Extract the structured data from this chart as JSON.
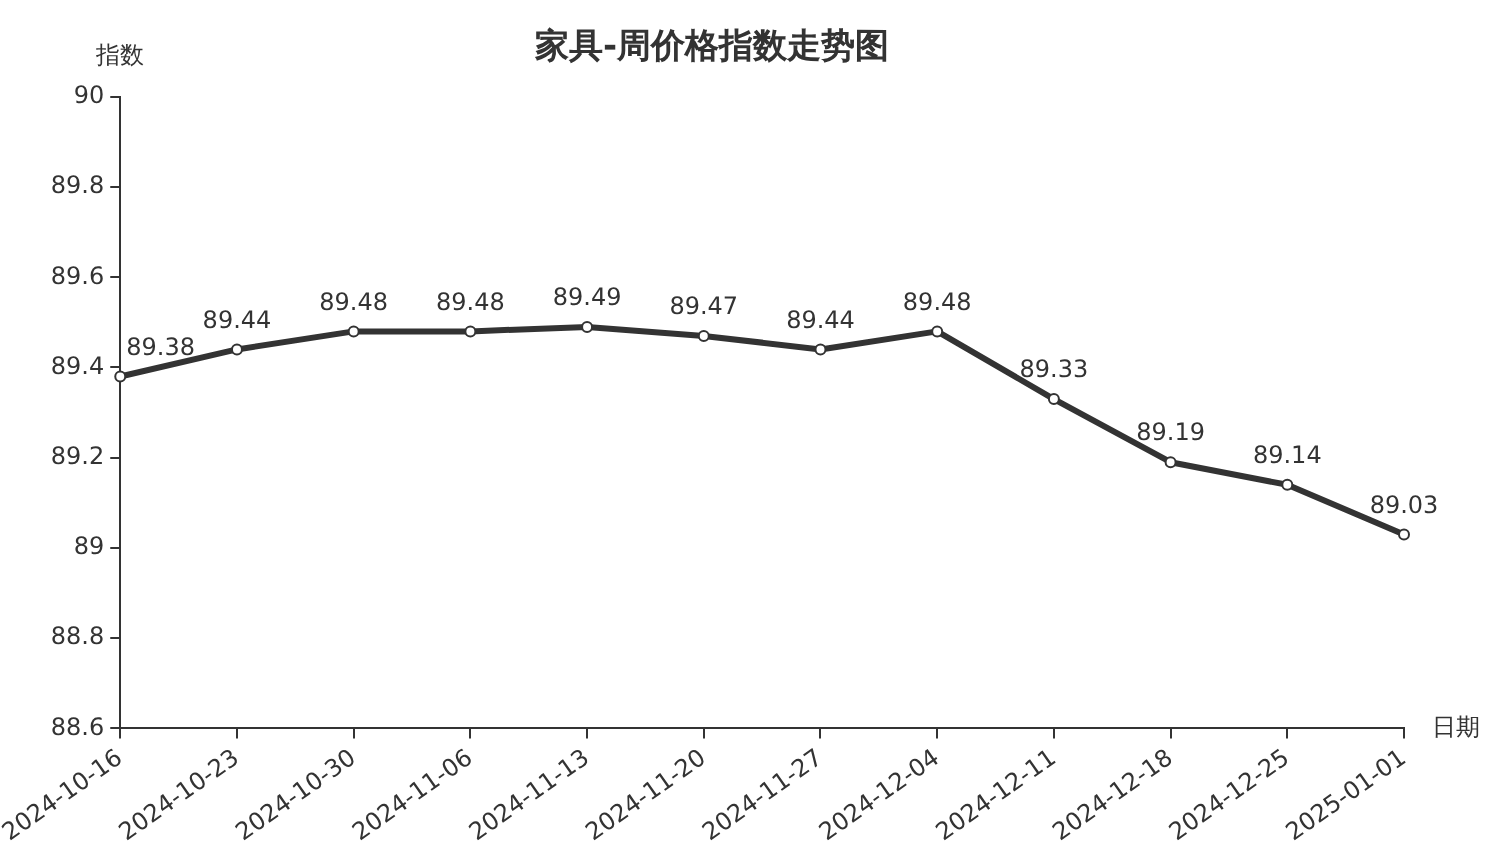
{
  "chart_data": {
    "type": "line",
    "title": "家具-周价格指数走势图",
    "xlabel": "日期",
    "ylabel": "指数",
    "categories": [
      "2024-10-16",
      "2024-10-23",
      "2024-10-30",
      "2024-11-06",
      "2024-11-13",
      "2024-11-20",
      "2024-11-27",
      "2024-12-04",
      "2024-12-11",
      "2024-12-18",
      "2024-12-25",
      "2025-01-01"
    ],
    "series": [
      {
        "color": "#333333",
        "values": [
          89.38,
          89.44,
          89.48,
          89.48,
          89.49,
          89.47,
          89.44,
          89.48,
          89.33,
          89.19,
          89.14,
          89.03
        ]
      }
    ],
    "ylim": [
      88.6,
      90
    ],
    "yticks": [
      88.6,
      88.8,
      89,
      89.2,
      89.4,
      89.6,
      89.8,
      90
    ],
    "grid": false,
    "legend": false,
    "marker": "circle",
    "line_style": "solid",
    "data_labels": true
  }
}
